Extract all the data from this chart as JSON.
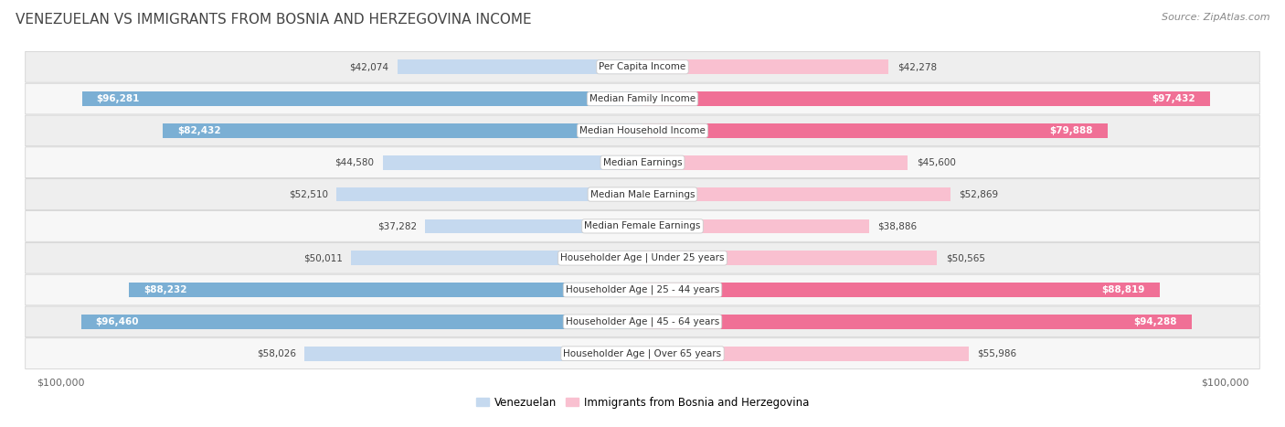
{
  "title": "VENEZUELAN VS IMMIGRANTS FROM BOSNIA AND HERZEGOVINA INCOME",
  "source": "Source: ZipAtlas.com",
  "categories": [
    "Per Capita Income",
    "Median Family Income",
    "Median Household Income",
    "Median Earnings",
    "Median Male Earnings",
    "Median Female Earnings",
    "Householder Age | Under 25 years",
    "Householder Age | 25 - 44 years",
    "Householder Age | 45 - 64 years",
    "Householder Age | Over 65 years"
  ],
  "venezuelan": [
    42074,
    96281,
    82432,
    44580,
    52510,
    37282,
    50011,
    88232,
    96460,
    58026
  ],
  "bosnia": [
    42278,
    97432,
    79888,
    45600,
    52869,
    38886,
    50565,
    88819,
    94288,
    55986
  ],
  "max_val": 100000,
  "blue_light": "#c5d9ef",
  "blue_dark": "#7bafd4",
  "pink_light": "#f9c0d0",
  "pink_dark": "#f07096",
  "blue_thresh": 75000,
  "pink_thresh": 75000,
  "label_blue": "Venezuelan",
  "label_pink": "Immigrants from Bosnia and Herzegovina",
  "bg_color": "#ffffff",
  "row_bg_odd": "#eeeeee",
  "row_bg_even": "#f7f7f7",
  "title_color": "#444444",
  "title_fontsize": 11,
  "source_fontsize": 8,
  "label_fontsize": 7.5,
  "value_fontsize": 7.5
}
